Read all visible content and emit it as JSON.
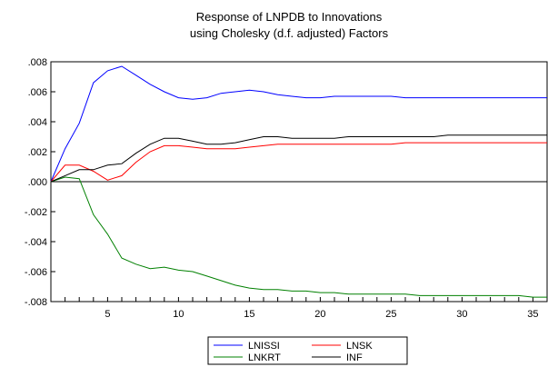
{
  "chart_data": {
    "type": "line",
    "title": "Response of LNPDB to Innovations",
    "subtitle": "using Cholesky (d.f. adjusted) Factors",
    "xlabel": "",
    "ylabel": "",
    "x": [
      1,
      2,
      3,
      4,
      5,
      6,
      7,
      8,
      9,
      10,
      11,
      12,
      13,
      14,
      15,
      16,
      17,
      18,
      19,
      20,
      21,
      22,
      23,
      24,
      25,
      26,
      27,
      28,
      29,
      30,
      31,
      32,
      33,
      34,
      35,
      36
    ],
    "xlim": [
      1,
      36
    ],
    "ylim": [
      -0.008,
      0.008
    ],
    "x_ticks": [
      5,
      10,
      15,
      20,
      25,
      30,
      35
    ],
    "x_tick_labels": [
      "5",
      "10",
      "15",
      "20",
      "25",
      "30",
      "35"
    ],
    "y_ticks": [
      0.008,
      0.006,
      0.004,
      0.002,
      0.0,
      -0.002,
      -0.004,
      -0.006,
      -0.008
    ],
    "y_tick_labels": [
      ".008",
      ".006",
      ".004",
      ".002",
      ".000",
      "-.002",
      "-.004",
      "-.006",
      "-.008"
    ],
    "grid": false,
    "zero_line": true,
    "legend_position": "bottom-center",
    "series": [
      {
        "name": "LNISSI",
        "color": "#0000ff",
        "values": [
          0.0,
          0.0022,
          0.0039,
          0.0066,
          0.0074,
          0.0077,
          0.0071,
          0.0065,
          0.006,
          0.0056,
          0.0055,
          0.0056,
          0.0059,
          0.006,
          0.0061,
          0.006,
          0.0058,
          0.0057,
          0.0056,
          0.0056,
          0.0057,
          0.0057,
          0.0057,
          0.0057,
          0.0057,
          0.0056,
          0.0056,
          0.0056,
          0.0056,
          0.0056,
          0.0056,
          0.0056,
          0.0056,
          0.0056,
          0.0056,
          0.0056
        ]
      },
      {
        "name": "LNSK",
        "color": "#ff0000",
        "values": [
          0.0,
          0.0011,
          0.0011,
          0.0007,
          0.0001,
          0.0004,
          0.0013,
          0.002,
          0.0024,
          0.0024,
          0.0023,
          0.0022,
          0.0022,
          0.0022,
          0.0023,
          0.0024,
          0.0025,
          0.0025,
          0.0025,
          0.0025,
          0.0025,
          0.0025,
          0.0025,
          0.0025,
          0.0025,
          0.0026,
          0.0026,
          0.0026,
          0.0026,
          0.0026,
          0.0026,
          0.0026,
          0.0026,
          0.0026,
          0.0026,
          0.0026
        ]
      },
      {
        "name": "LNKRT",
        "color": "#008000",
        "values": [
          0.0,
          0.0003,
          0.0002,
          -0.0022,
          -0.0035,
          -0.0051,
          -0.0055,
          -0.0058,
          -0.0057,
          -0.0059,
          -0.006,
          -0.0063,
          -0.0066,
          -0.0069,
          -0.0071,
          -0.0072,
          -0.0072,
          -0.0073,
          -0.0073,
          -0.0074,
          -0.0074,
          -0.0075,
          -0.0075,
          -0.0075,
          -0.0075,
          -0.0075,
          -0.0076,
          -0.0076,
          -0.0076,
          -0.0076,
          -0.0076,
          -0.0076,
          -0.0076,
          -0.0076,
          -0.0077,
          -0.0077
        ]
      },
      {
        "name": "INF",
        "color": "#000000",
        "values": [
          0.0,
          0.0004,
          0.0008,
          0.0008,
          0.0011,
          0.0012,
          0.0019,
          0.0025,
          0.0029,
          0.0029,
          0.0027,
          0.0025,
          0.0025,
          0.0026,
          0.0028,
          0.003,
          0.003,
          0.0029,
          0.0029,
          0.0029,
          0.0029,
          0.003,
          0.003,
          0.003,
          0.003,
          0.003,
          0.003,
          0.003,
          0.0031,
          0.0031,
          0.0031,
          0.0031,
          0.0031,
          0.0031,
          0.0031,
          0.0031
        ]
      }
    ]
  }
}
